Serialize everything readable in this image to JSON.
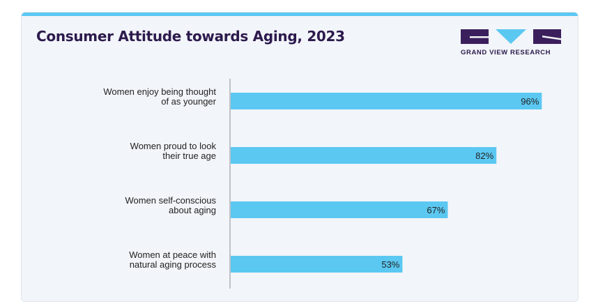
{
  "title": "Consumer Attitude towards Aging, 2023",
  "logo": {
    "text": "GRAND VIEW RESEARCH",
    "colors": {
      "dark": "#3b1f5c",
      "accent": "#5bc8f2"
    }
  },
  "colors": {
    "bar": "#5bc8f2",
    "title": "#2c1a4d",
    "card": "#f2f5f9"
  },
  "chart_data": {
    "type": "bar",
    "orientation": "horizontal",
    "title": "Consumer Attitude towards Aging, 2023",
    "xlabel": "",
    "ylabel": "",
    "xlim": [
      0,
      100
    ],
    "grid": false,
    "categories": [
      [
        "Women enjoy being thought",
        "of as younger"
      ],
      [
        "Women proud to look",
        "their true age"
      ],
      [
        "Women self-conscious",
        "about aging"
      ],
      [
        "Women at peace with",
        "natural aging process"
      ]
    ],
    "values": [
      96,
      82,
      67,
      53
    ],
    "data_labels": [
      "96%",
      "82%",
      "67%",
      "53%"
    ],
    "unit": "%"
  }
}
